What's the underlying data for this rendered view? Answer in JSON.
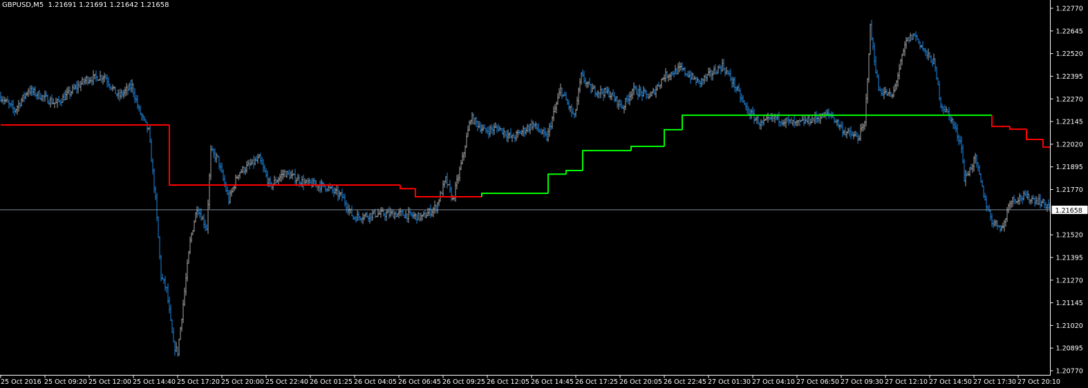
{
  "header": {
    "symbol": "GBPUSD,M5",
    "ohlc": "1.21691 1.21691 1.21642 1.21658"
  },
  "chart_data": {
    "type": "bar",
    "symbol": "GBPUSD",
    "timeframe": "M5",
    "current_price": 1.21658,
    "current_price_label": "1.21658",
    "ylim": [
      1.2077,
      1.2277
    ],
    "y_ticks": [
      "1.22770",
      "1.22645",
      "1.22520",
      "1.22395",
      "1.22270",
      "1.22145",
      "1.22020",
      "1.21895",
      "1.21770",
      "1.21645",
      "1.21520",
      "1.21395",
      "1.21270",
      "1.21145",
      "1.21020",
      "1.20895",
      "1.20770"
    ],
    "x_ticks": [
      "25 Oct 2016",
      "25 Oct 09:20",
      "25 Oct 12:00",
      "25 Oct 14:40",
      "25 Oct 17:20",
      "25 Oct 20:00",
      "25 Oct 22:40",
      "26 Oct 01:25",
      "26 Oct 04:05",
      "26 Oct 06:45",
      "26 Oct 09:25",
      "26 Oct 12:05",
      "26 Oct 14:45",
      "26 Oct 17:25",
      "26 Oct 20:05",
      "26 Oct 22:45",
      "27 Oct 01:30",
      "27 Oct 04:10",
      "27 Oct 06:50",
      "27 Oct 09:30",
      "27 Oct 12:10",
      "27 Oct 14:50",
      "27 Oct 17:30",
      "27 Oct 20:10"
    ],
    "bars_per_tick": 32,
    "price_path": [
      [
        0,
        1.22282
      ],
      [
        10,
        1.22206
      ],
      [
        20,
        1.2232
      ],
      [
        40,
        1.22244
      ],
      [
        62,
        1.22378
      ],
      [
        75,
        1.22397
      ],
      [
        85,
        1.22282
      ],
      [
        95,
        1.2234
      ],
      [
        100,
        1.22206
      ],
      [
        107,
        1.22092
      ],
      [
        112,
        1.21711
      ],
      [
        116,
        1.21292
      ],
      [
        120,
        1.21216
      ],
      [
        125,
        1.20911
      ],
      [
        128,
        1.20873
      ],
      [
        132,
        1.21139
      ],
      [
        137,
        1.21482
      ],
      [
        142,
        1.21673
      ],
      [
        149,
        1.21558
      ],
      [
        152,
        1.21978
      ],
      [
        157,
        1.21939
      ],
      [
        165,
        1.21711
      ],
      [
        172,
        1.21863
      ],
      [
        187,
        1.21939
      ],
      [
        195,
        1.21787
      ],
      [
        205,
        1.21863
      ],
      [
        220,
        1.21806
      ],
      [
        235,
        1.21787
      ],
      [
        247,
        1.2173
      ],
      [
        255,
        1.21616
      ],
      [
        270,
        1.21635
      ],
      [
        290,
        1.21635
      ],
      [
        305,
        1.21616
      ],
      [
        315,
        1.21673
      ],
      [
        322,
        1.21825
      ],
      [
        327,
        1.21711
      ],
      [
        334,
        1.21939
      ],
      [
        340,
        1.22168
      ],
      [
        350,
        1.22092
      ],
      [
        360,
        1.22111
      ],
      [
        370,
        1.22054
      ],
      [
        385,
        1.2213
      ],
      [
        395,
        1.22054
      ],
      [
        405,
        1.22321
      ],
      [
        415,
        1.22168
      ],
      [
        420,
        1.22397
      ],
      [
        427,
        1.22321
      ],
      [
        440,
        1.22302
      ],
      [
        450,
        1.22225
      ],
      [
        457,
        1.22321
      ],
      [
        470,
        1.22282
      ],
      [
        480,
        1.22397
      ],
      [
        492,
        1.22435
      ],
      [
        505,
        1.22359
      ],
      [
        522,
        1.22454
      ],
      [
        530,
        1.22359
      ],
      [
        540,
        1.22206
      ],
      [
        550,
        1.2213
      ],
      [
        560,
        1.22168
      ],
      [
        575,
        1.2213
      ],
      [
        600,
        1.22187
      ],
      [
        610,
        1.22092
      ],
      [
        620,
        1.22054
      ],
      [
        625,
        1.2213
      ],
      [
        629,
        1.22663
      ],
      [
        635,
        1.22321
      ],
      [
        645,
        1.22282
      ],
      [
        655,
        1.22587
      ],
      [
        661,
        1.22625
      ],
      [
        670,
        1.22511
      ],
      [
        675,
        1.22473
      ],
      [
        680,
        1.22244
      ],
      [
        687,
        1.22168
      ],
      [
        695,
        1.22016
      ],
      [
        697,
        1.21825
      ],
      [
        705,
        1.21939
      ],
      [
        712,
        1.21711
      ],
      [
        717,
        1.21597
      ],
      [
        725,
        1.21558
      ],
      [
        730,
        1.21711
      ],
      [
        740,
        1.2173
      ],
      [
        750,
        1.21711
      ],
      [
        759,
        1.21673
      ]
    ],
    "indicator": [
      {
        "from": 0,
        "to": 122,
        "value": 1.22126,
        "color": "#ff0000"
      },
      {
        "from": 122,
        "to": 289,
        "value": 1.21795,
        "color": "#ff0000"
      },
      {
        "from": 289,
        "to": 300,
        "value": 1.21775,
        "color": "#ff0000"
      },
      {
        "from": 300,
        "to": 348,
        "value": 1.2173,
        "color": "#ff0000"
      },
      {
        "from": 348,
        "to": 396,
        "value": 1.21749,
        "color": "#00ff00"
      },
      {
        "from": 396,
        "to": 409,
        "value": 1.21855,
        "color": "#00ff00"
      },
      {
        "from": 409,
        "to": 421,
        "value": 1.21875,
        "color": "#00ff00"
      },
      {
        "from": 421,
        "to": 456,
        "value": 1.21985,
        "color": "#00ff00"
      },
      {
        "from": 456,
        "to": 480,
        "value": 1.22008,
        "color": "#00ff00"
      },
      {
        "from": 480,
        "to": 493,
        "value": 1.221,
        "color": "#00ff00"
      },
      {
        "from": 493,
        "to": 717,
        "value": 1.2218,
        "color": "#00ff00"
      },
      {
        "from": 717,
        "to": 730,
        "value": 1.22118,
        "color": "#ff0000"
      },
      {
        "from": 730,
        "to": 742,
        "value": 1.22103,
        "color": "#ff0000"
      },
      {
        "from": 742,
        "to": 754,
        "value": 1.22046,
        "color": "#ff0000"
      },
      {
        "from": 754,
        "to": 759,
        "value": 1.22004,
        "color": "#ff0000"
      }
    ],
    "colors": {
      "bull_bar": "#a8a8a8",
      "bear_bar": "#1e88e5",
      "axis": "#ffffff",
      "price_line": "#8090a0",
      "background": "#000000"
    },
    "grid": false
  }
}
